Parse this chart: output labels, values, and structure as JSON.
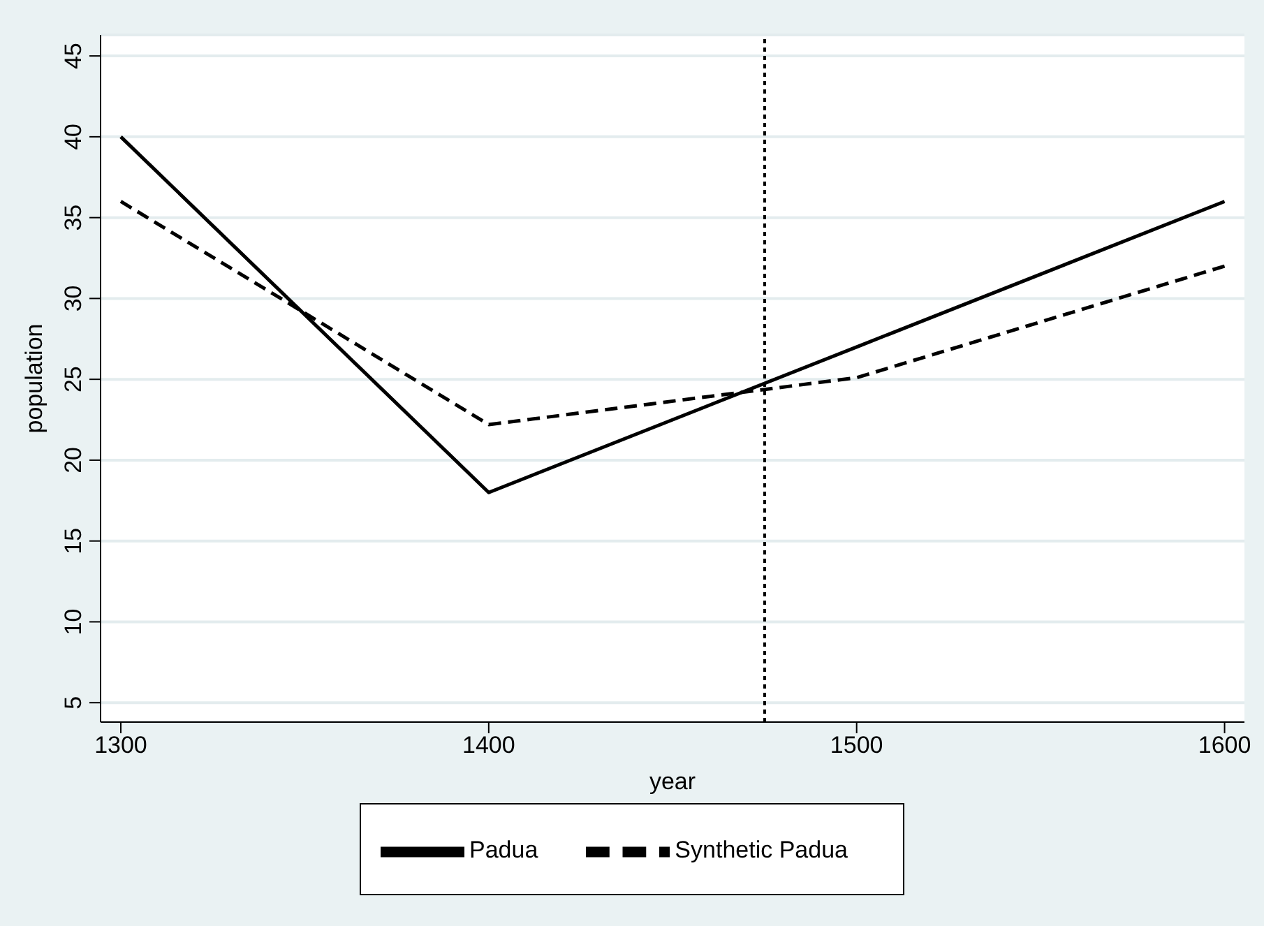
{
  "chart_data": {
    "type": "line",
    "xlabel": "year",
    "ylabel": "population",
    "x": [
      1300,
      1400,
      1500,
      1600
    ],
    "series": [
      {
        "name": "Padua",
        "color": "#000000",
        "line_style": "solid",
        "values": [
          40,
          18,
          27,
          36
        ]
      },
      {
        "name": "Synthetic Padua",
        "color": "#000000",
        "line_style": "dashed",
        "values": [
          36,
          22.2,
          25.1,
          32
        ]
      }
    ],
    "xlim": [
      1294.5,
      1605.4
    ],
    "xticks": [
      1300,
      1400,
      1500,
      1600
    ],
    "ylim": [
      3.8,
      46.3
    ],
    "yticks": [
      5,
      10,
      15,
      20,
      25,
      30,
      35,
      40,
      45
    ],
    "ref_lines": [
      {
        "axis": "x",
        "value": 1475,
        "line_style": "dotted",
        "color": "#000000"
      }
    ],
    "grid": "y",
    "legend": "bottom",
    "marker": "none"
  }
}
